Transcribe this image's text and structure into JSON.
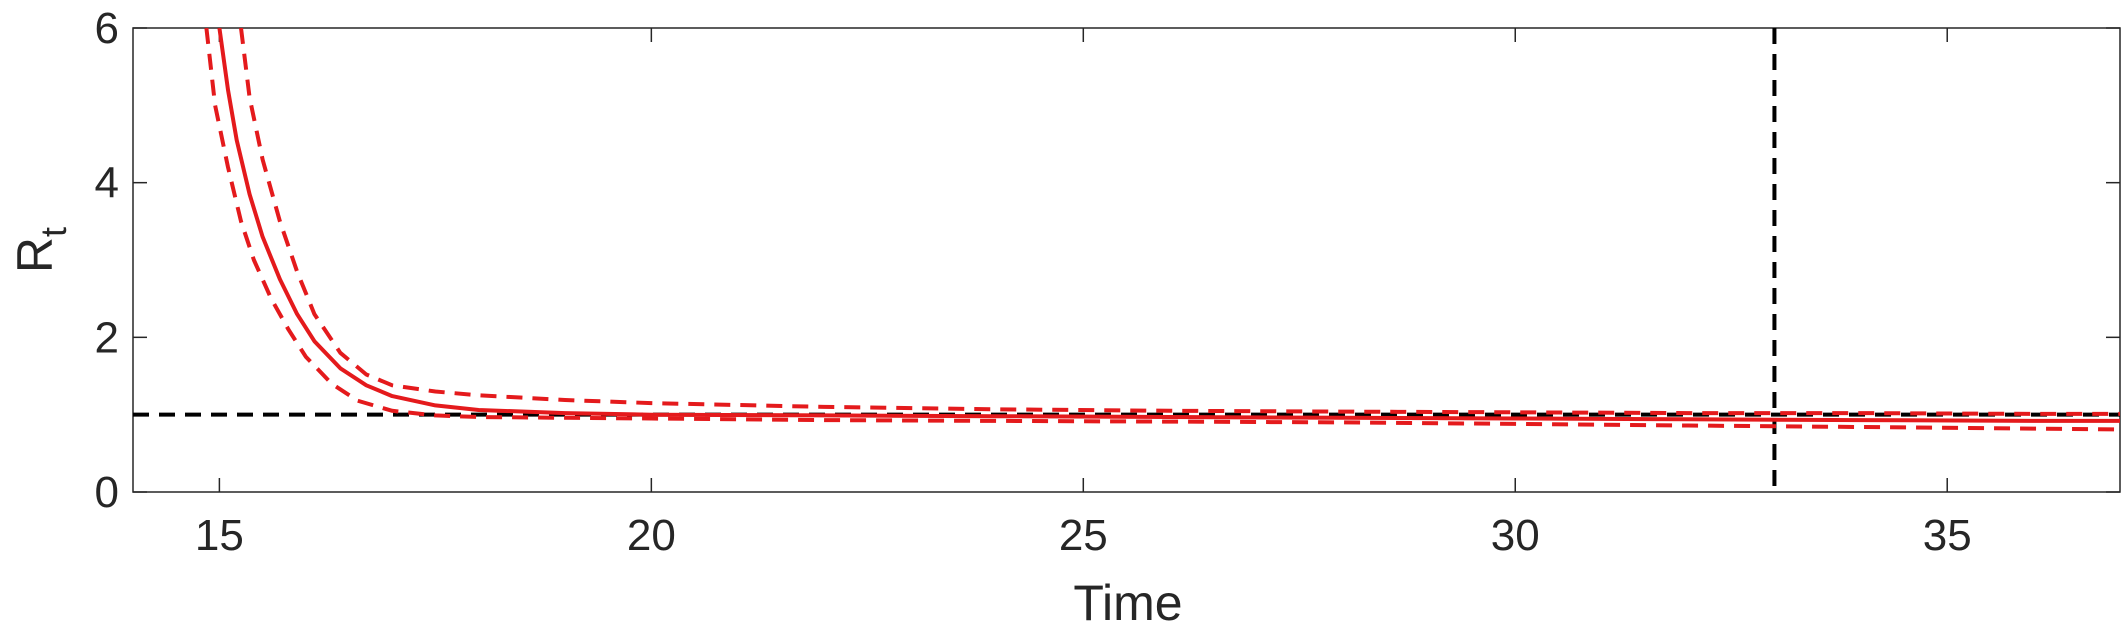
{
  "chart_data": {
    "type": "line",
    "title": "",
    "xlabel": "Time",
    "ylabel": {
      "main": "R",
      "subscript": "t"
    },
    "xlim": [
      14,
      37
    ],
    "ylim": [
      0,
      6
    ],
    "xticks": [
      "15",
      "20",
      "25",
      "30",
      "35"
    ],
    "yticks": [
      "0",
      "2",
      "4",
      "6"
    ],
    "grid": false,
    "legend": "none",
    "colors": {
      "series": "#e41a1c",
      "reference": "#000000",
      "axis": "#262626"
    },
    "series": [
      {
        "role": "estimate",
        "style": "solid",
        "x": [
          15.0,
          15.1,
          15.2,
          15.35,
          15.5,
          15.7,
          15.9,
          16.1,
          16.4,
          16.7,
          17.0,
          17.5,
          18,
          19,
          20,
          22,
          24,
          26,
          28,
          30,
          32,
          34,
          36,
          37
        ],
        "y": [
          6.0,
          5.2,
          4.55,
          3.85,
          3.3,
          2.75,
          2.3,
          1.95,
          1.6,
          1.38,
          1.24,
          1.12,
          1.06,
          1.02,
          1.0,
          0.99,
          0.98,
          0.97,
          0.96,
          0.95,
          0.94,
          0.93,
          0.92,
          0.92
        ]
      },
      {
        "role": "upper bound",
        "style": "dashed",
        "x": [
          15.25,
          15.35,
          15.5,
          15.7,
          15.9,
          16.1,
          16.4,
          16.7,
          17.0,
          17.5,
          18,
          19,
          20,
          22,
          24,
          26,
          28,
          30,
          32,
          34,
          36,
          37
        ],
        "y": [
          6.0,
          5.1,
          4.3,
          3.5,
          2.85,
          2.3,
          1.8,
          1.52,
          1.38,
          1.3,
          1.25,
          1.19,
          1.15,
          1.1,
          1.07,
          1.05,
          1.04,
          1.03,
          1.02,
          1.02,
          1.01,
          1.01
        ]
      },
      {
        "role": "lower bound",
        "style": "dashed",
        "x": [
          14.85,
          14.95,
          15.1,
          15.25,
          15.4,
          15.6,
          15.8,
          16.0,
          16.3,
          16.6,
          17.0,
          17.5,
          18,
          19,
          20,
          22,
          24,
          26,
          28,
          30,
          32,
          34,
          36,
          37
        ],
        "y": [
          6.0,
          5.0,
          4.2,
          3.5,
          3.0,
          2.5,
          2.1,
          1.75,
          1.4,
          1.18,
          1.05,
          0.99,
          0.97,
          0.96,
          0.95,
          0.93,
          0.92,
          0.91,
          0.9,
          0.88,
          0.86,
          0.84,
          0.82,
          0.81
        ]
      }
    ],
    "reference_lines": [
      {
        "orientation": "horizontal",
        "value": 1,
        "style": "dashed"
      },
      {
        "orientation": "vertical",
        "value": 33,
        "style": "dashed"
      }
    ]
  }
}
